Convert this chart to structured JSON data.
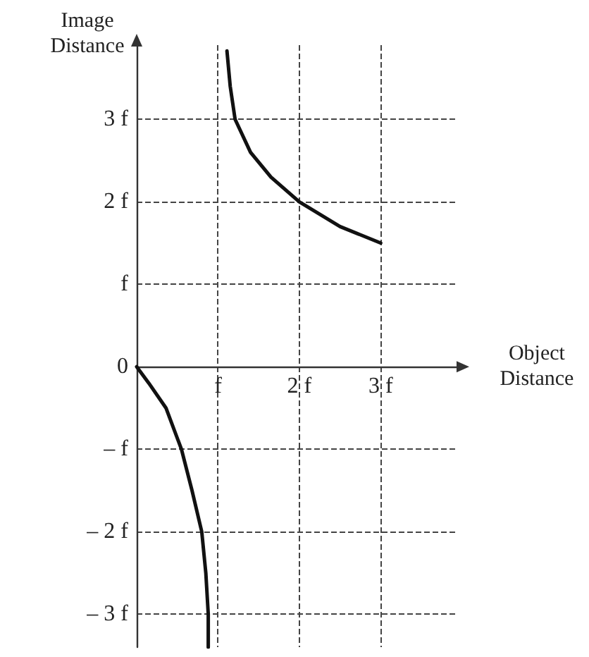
{
  "chart_data": {
    "type": "line",
    "xlabel": "Object Distance",
    "ylabel": "Image Distance",
    "xlim": [
      0,
      3.95
    ],
    "ylim": [
      -3.4,
      3.9
    ],
    "xticks": [
      {
        "value": 1,
        "label": "f"
      },
      {
        "value": 2,
        "label": "2 f"
      },
      {
        "value": 3,
        "label": "3 f"
      }
    ],
    "yticks": [
      {
        "value": -3,
        "label": "– 3 f"
      },
      {
        "value": -2,
        "label": "– 2 f"
      },
      {
        "value": -1,
        "label": "– f"
      },
      0,
      {
        "value": 1,
        "label": "f"
      },
      {
        "value": 2,
        "label": "2 f"
      },
      {
        "value": 3,
        "label": "3 f"
      }
    ],
    "grid": true,
    "marker": "none",
    "line_style": "solid",
    "series": [
      {
        "color": "#111111",
        "x": [
          0,
          0.15,
          0.36,
          0.55,
          0.68,
          0.8,
          0.85,
          0.88,
          0.88
        ],
        "values": [
          0,
          -0.2,
          -0.5,
          -1,
          -1.5,
          -2,
          -2.5,
          -3,
          -3.4
        ]
      },
      {
        "color": "#111111",
        "x": [
          1.11,
          1.15,
          1.21,
          1.4,
          1.65,
          2,
          2.5,
          3
        ],
        "values": [
          3.83,
          3.4,
          3,
          2.6,
          2.3,
          2,
          1.7,
          1.5
        ]
      }
    ]
  }
}
